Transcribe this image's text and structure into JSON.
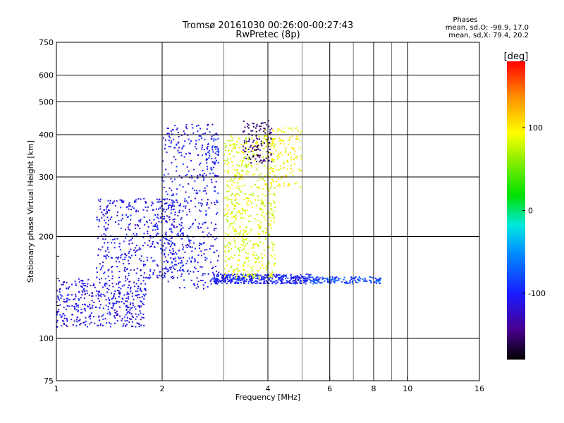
{
  "chart_data": {
    "type": "scatter",
    "title": "Tromsø 20161030 00:26:00-00:27:43",
    "subtitle": "RwPretec (8p)",
    "xlabel": "Frequency [MHz]",
    "ylabel": "Stationary phase Virtual Height [km]",
    "x_scale": "log",
    "y_scale": "log",
    "xlim": [
      1,
      16
    ],
    "ylim": [
      75,
      750
    ],
    "x_ticks": [
      1,
      2,
      4,
      6,
      8,
      10,
      16
    ],
    "x_tick_labels": [
      "1",
      "2",
      "4",
      "6",
      "8",
      "10",
      "16"
    ],
    "x_minor_ticks": [
      3,
      5,
      7,
      9
    ],
    "y_ticks": [
      75,
      100,
      200,
      300,
      400,
      500,
      600,
      750
    ],
    "y_tick_labels": [
      "75",
      "100",
      "200",
      "300",
      "400",
      "500",
      "600",
      "750"
    ],
    "y_minor_ticks": [
      125,
      150,
      175
    ],
    "grid": true,
    "stats": {
      "heading": "Phases",
      "line_o": "mean, sd,O:  -98.9, 17.0",
      "line_x": "mean, sd,X:  79.4, 20.2"
    },
    "colorbar": {
      "label": "[deg]",
      "min": -180,
      "max": 180,
      "ticks": [
        -100,
        0,
        100
      ],
      "tick_labels": [
        "-100",
        "0",
        "100"
      ],
      "colormap": "rainbow"
    },
    "point_groups": [
      {
        "f": [
          1.0,
          1.8
        ],
        "h": [
          108,
          150
        ],
        "phase": -110,
        "n": 420
      },
      {
        "f": [
          1.3,
          2.3
        ],
        "h": [
          150,
          260
        ],
        "phase": -108,
        "n": 460
      },
      {
        "f": [
          2.0,
          2.9
        ],
        "h": [
          140,
          430
        ],
        "phase": -105,
        "n": 420
      },
      {
        "f": [
          2.6,
          2.9
        ],
        "h": [
          300,
          410
        ],
        "phase": -100,
        "n": 60
      },
      {
        "f": [
          2.8,
          5.3
        ],
        "h": [
          145,
          155
        ],
        "phase": -100,
        "n": 380
      },
      {
        "f": [
          5.3,
          8.4
        ],
        "h": [
          145,
          152
        ],
        "phase": -80,
        "n": 140
      },
      {
        "f": [
          3.0,
          4.2
        ],
        "h": [
          150,
          400
        ],
        "phase": 85,
        "n": 560
      },
      {
        "f": [
          3.9,
          5.0
        ],
        "h": [
          280,
          420
        ],
        "phase": 95,
        "n": 140
      },
      {
        "f": [
          3.4,
          4.1
        ],
        "h": [
          330,
          440
        ],
        "phase": -150,
        "n": 120
      }
    ]
  }
}
